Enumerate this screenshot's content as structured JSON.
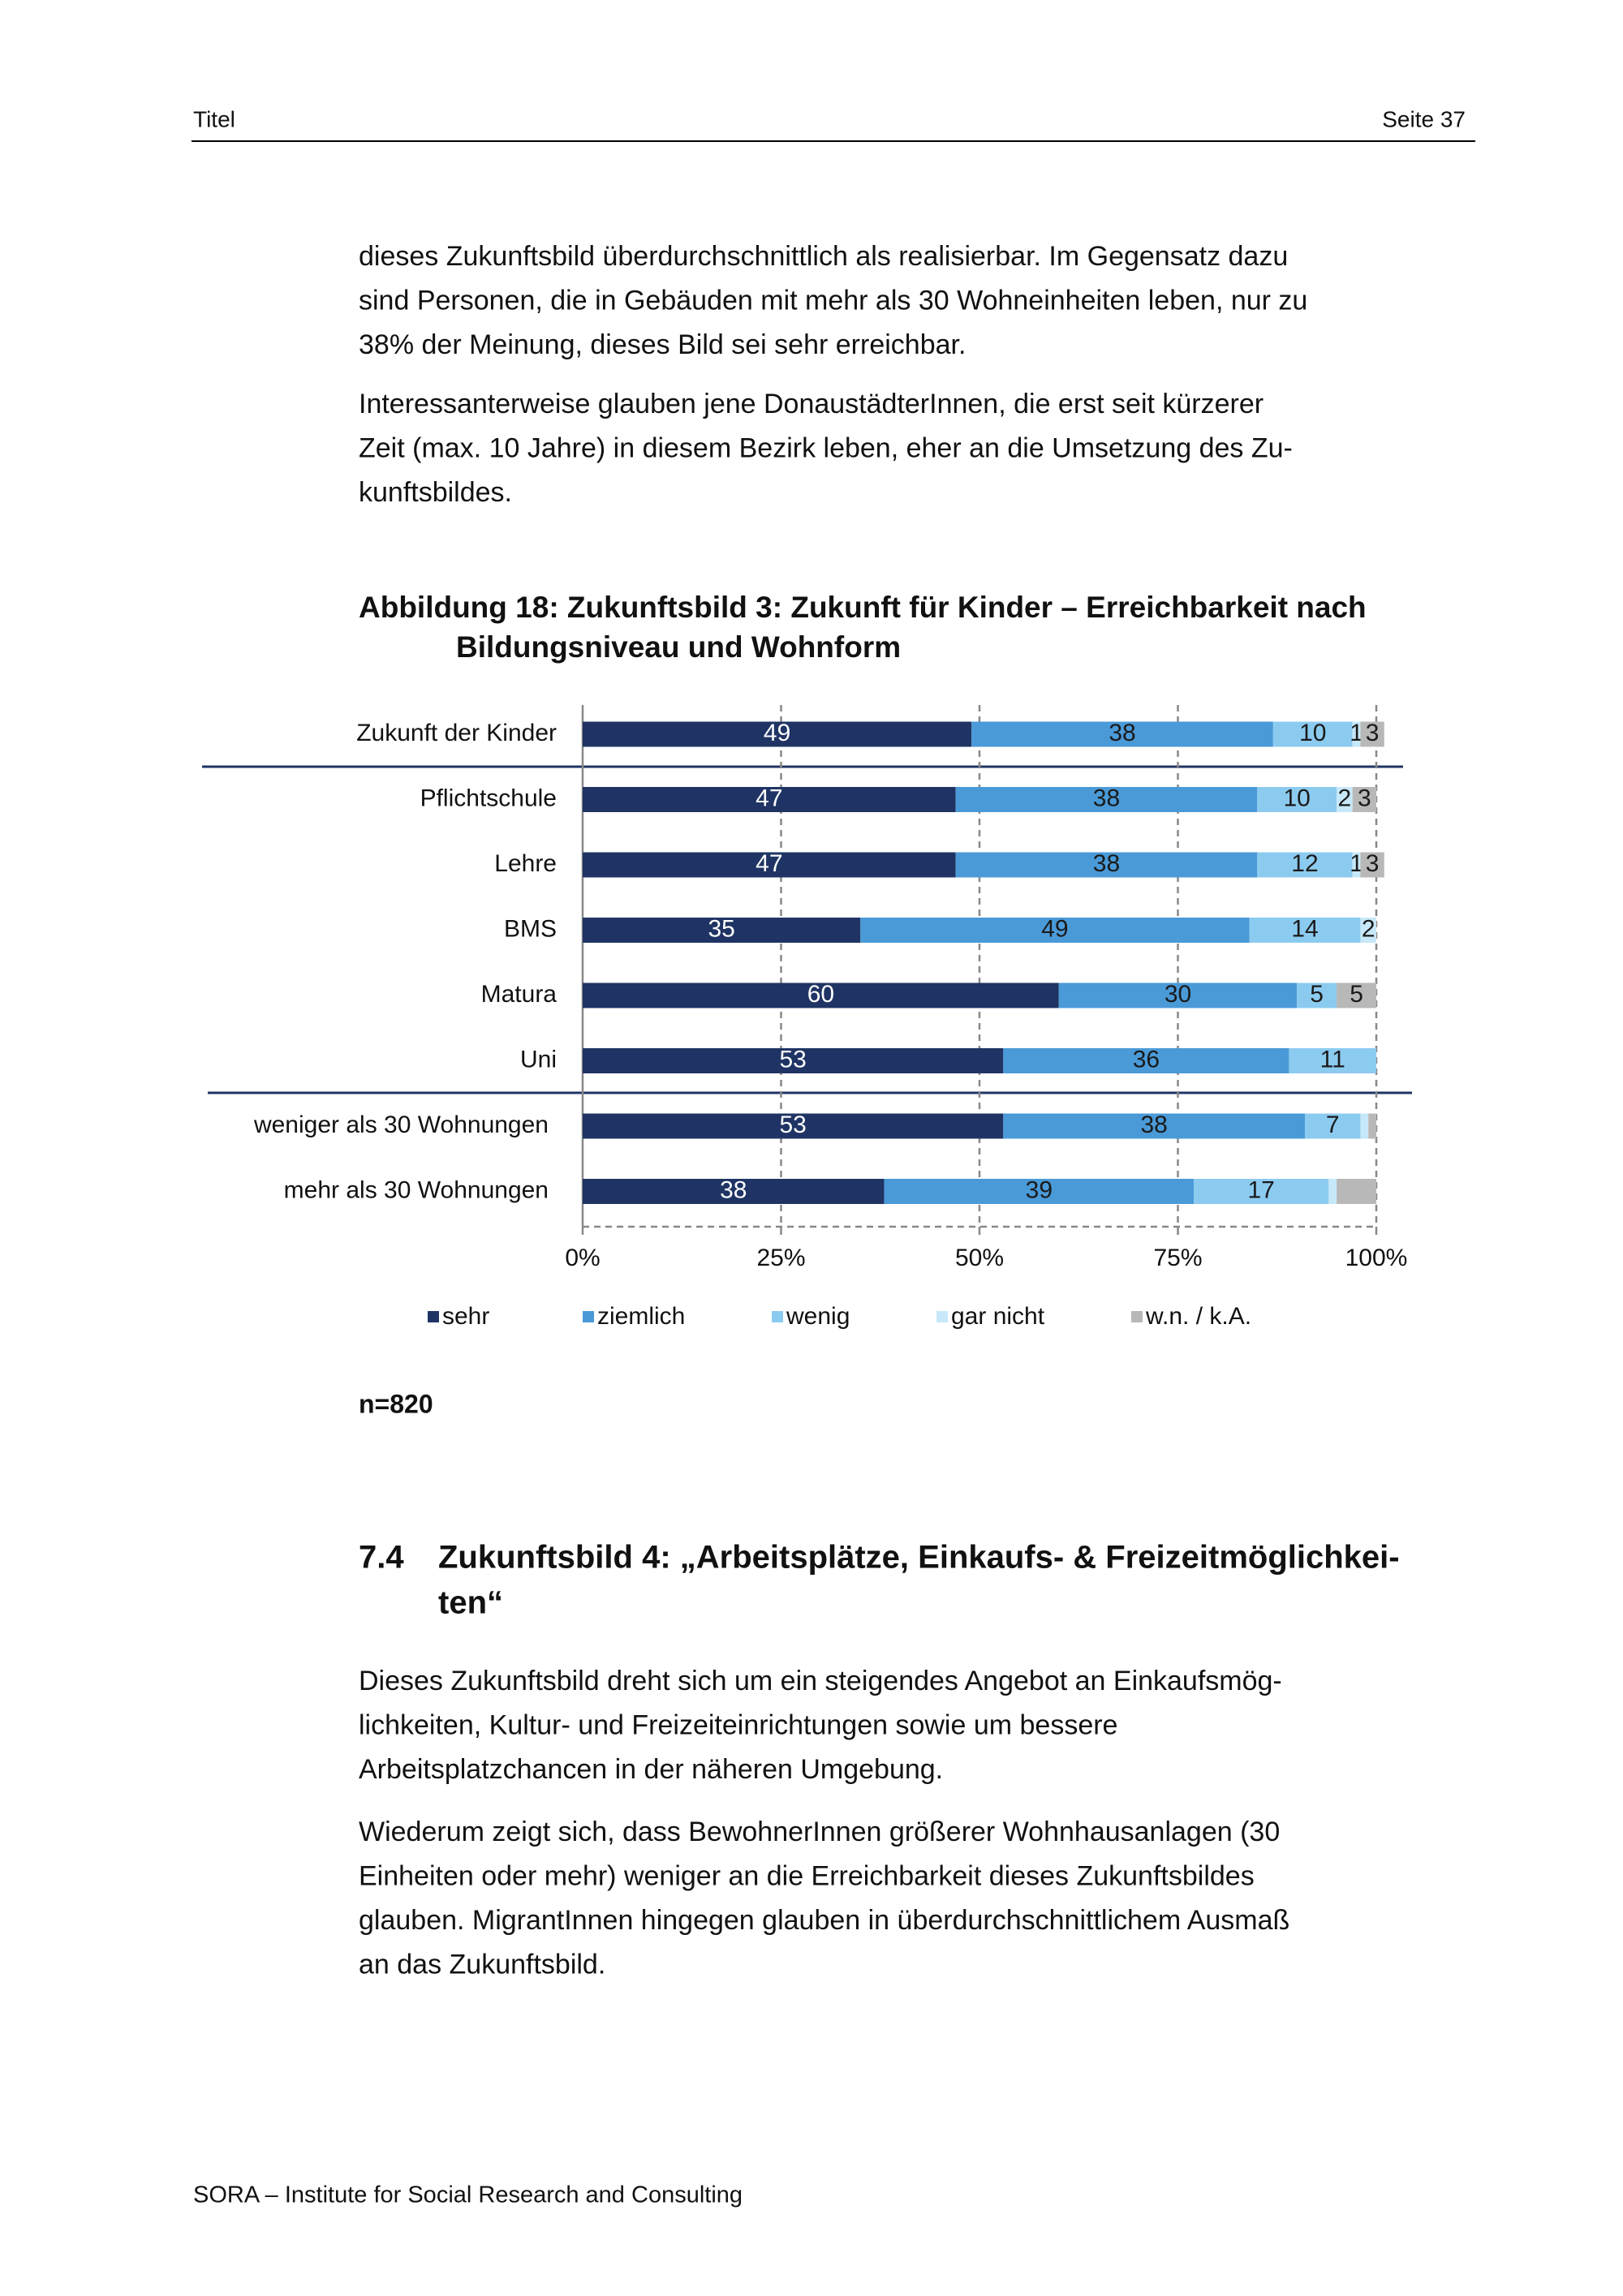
{
  "header": {
    "left": "Titel",
    "right": "Seite 37"
  },
  "paragraphs_top": [
    [
      "dieses Zukunftsbild überdurchschnittlich als realisierbar. Im Gegensatz dazu",
      "sind Personen, die in Gebäuden mit mehr als 30 Wohneinheiten leben, nur zu",
      "38% der Meinung, dieses Bild sei sehr erreichbar."
    ],
    [
      "Interessanterweise glauben jene DonaustädterInnen, die erst seit kürzerer",
      "Zeit (max. 10 Jahre) in diesem Bezirk leben, eher an die Umsetzung des Zu-",
      "kunftsbildes."
    ]
  ],
  "figure": {
    "caption_lines": [
      "Abbildung 18: Zukunftsbild 3: Zukunft für Kinder – Erreichbarkeit nach",
      "Bildungsniveau und Wohnform"
    ],
    "note": "n=820"
  },
  "chart_data": {
    "type": "stacked-bar-horizontal",
    "categories": [
      "Zukunft der Kinder",
      "Pflichtschule",
      "Lehre",
      "BMS",
      "Matura",
      "Uni",
      "weniger als 30 Wohnungen",
      "mehr als 30 Wohnungen"
    ],
    "series": [
      {
        "name": "sehr",
        "color": "#1f3464",
        "values": [
          49,
          47,
          47,
          35,
          60,
          53,
          53,
          38
        ],
        "value_labels": [
          "49",
          "47",
          "47",
          "35",
          "60",
          "53",
          "53",
          "38"
        ]
      },
      {
        "name": "ziemlich",
        "color": "#4a9ad8",
        "values": [
          38,
          38,
          38,
          49,
          30,
          36,
          38,
          39
        ],
        "value_labels": [
          "38",
          "38",
          "38",
          "49",
          "30",
          "36",
          "38",
          "39"
        ]
      },
      {
        "name": "wenig",
        "color": "#8ccbf0",
        "values": [
          10,
          10,
          12,
          14,
          5,
          11,
          7,
          17
        ],
        "value_labels": [
          "10",
          "10",
          "12",
          "14",
          "5",
          "11",
          "7",
          "17"
        ]
      },
      {
        "name": "gar nicht",
        "color": "#c7e8f8",
        "values": [
          1,
          2,
          1,
          2,
          0,
          0,
          1,
          1
        ],
        "value_labels": [
          "1",
          "2",
          "1",
          "2",
          null,
          null,
          null,
          null
        ]
      },
      {
        "name": "w.n. / k.A.",
        "color": "#b8b8b8",
        "values": [
          3,
          3,
          3,
          0,
          5,
          0,
          1,
          5
        ],
        "value_labels": [
          "3",
          "3",
          "3",
          null,
          "5",
          null,
          null,
          null
        ]
      }
    ],
    "xlim": [
      0,
      100
    ],
    "xticks": [
      {
        "value": 0,
        "label": "0%"
      },
      {
        "value": 25,
        "label": "25%"
      },
      {
        "value": 50,
        "label": "50%"
      },
      {
        "value": 75,
        "label": "75%"
      },
      {
        "value": 100,
        "label": "100%"
      }
    ],
    "grid": true,
    "legend": "bottom"
  },
  "section": {
    "number": "7.4",
    "title_lines": [
      "Zukunftsbild 4: „Arbeitsplätze, Einkaufs- & Freizeitmöglichkei-",
      "ten“"
    ]
  },
  "paragraphs_bottom": [
    [
      "Dieses Zukunftsbild dreht sich um ein steigendes Angebot an Einkaufsmög-",
      "lichkeiten, Kultur- und Freizeiteinrichtungen sowie um bessere",
      "Arbeitsplatzchancen in der näheren Umgebung."
    ],
    [
      "Wiederum zeigt sich, dass BewohnerInnen größerer Wohnhausanlagen (30",
      "Einheiten oder mehr) weniger an die Erreichbarkeit dieses Zukunftsbildes",
      "glauben. MigrantInnen hingegen glauben in überdurchschnittlichem Ausmaß",
      "an das Zukunftsbild."
    ]
  ],
  "footer": "SORA – Institute for Social Research and Consulting"
}
